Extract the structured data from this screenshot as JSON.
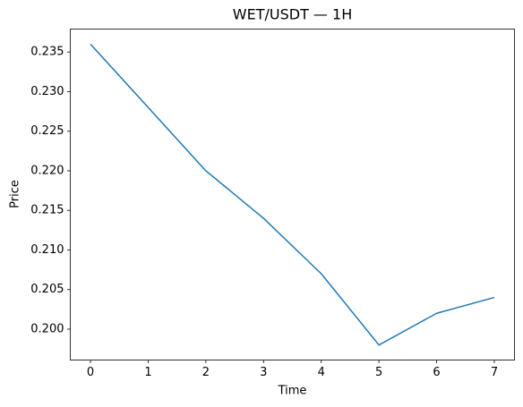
{
  "chart_data": {
    "type": "line",
    "title": "WET/USDT — 1H",
    "xlabel": "Time",
    "ylabel": "Price",
    "x": [
      0,
      1,
      2,
      3,
      4,
      5,
      6,
      7
    ],
    "values": [
      0.236,
      0.228,
      0.22,
      0.214,
      0.207,
      0.198,
      0.202,
      0.204
    ],
    "color": "#1f77b4",
    "xlim": [
      -0.35,
      7.35
    ],
    "xticks": [
      0,
      1,
      2,
      3,
      4,
      5,
      6,
      7
    ],
    "ylim": [
      0.1961,
      0.2379
    ],
    "yticks": [
      {
        "value": 0.2,
        "label": "0.200"
      },
      0.205,
      {
        "value": 0.21,
        "label": "0.210"
      },
      0.215,
      {
        "value": 0.22,
        "label": "0.220"
      },
      0.225,
      {
        "value": 0.23,
        "label": "0.230"
      },
      0.235
    ],
    "grid": false
  }
}
